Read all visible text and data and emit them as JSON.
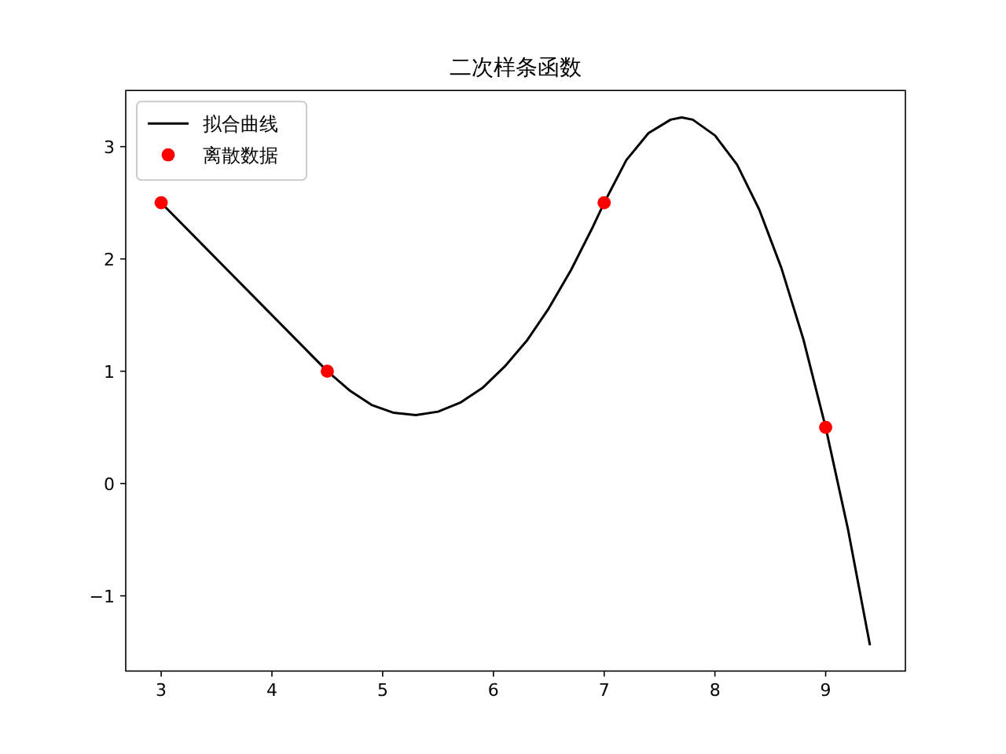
{
  "chart_data": {
    "type": "line",
    "title": "二次样条函数",
    "series": [
      {
        "name": "拟合曲线",
        "color": "#000000",
        "x": [
          3,
          4.5,
          4.7,
          4.9,
          5.1,
          5.3,
          5.5,
          5.7,
          5.9,
          6.1,
          6.3,
          6.5,
          6.7,
          6.9,
          7,
          7.2,
          7.4,
          7.6,
          7.7,
          7.8,
          8.0,
          8.2,
          8.4,
          8.6,
          8.8,
          9.0,
          9.2,
          9.4
        ],
        "values": [
          2.5,
          1.0,
          0.83,
          0.7,
          0.63,
          0.61,
          0.64,
          0.72,
          0.85,
          1.04,
          1.27,
          1.56,
          1.9,
          2.29,
          2.5,
          2.88,
          3.12,
          3.24,
          3.26,
          3.24,
          3.1,
          2.84,
          2.44,
          1.92,
          1.28,
          0.5,
          -0.4,
          -1.44
        ]
      },
      {
        "name": "离散数据",
        "type": "scatter",
        "color": "#ff0000",
        "x": [
          3,
          4.5,
          7,
          9
        ],
        "values": [
          2.5,
          1.0,
          2.5,
          0.5
        ]
      }
    ],
    "xlim": [
      2.68,
      9.72
    ],
    "ylim": [
      -1.67,
      3.5
    ],
    "xticks": [
      3,
      4,
      5,
      6,
      7,
      8,
      9
    ],
    "yticks": [
      -1,
      0,
      1,
      2,
      3
    ],
    "legend": "top left",
    "grid": false
  }
}
